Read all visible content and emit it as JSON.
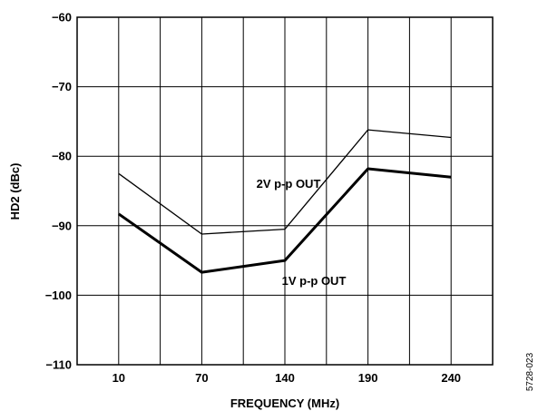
{
  "chart_data": {
    "type": "line",
    "xlabel": "FREQUENCY (MHz)",
    "ylabel": "HD2 (dBc)",
    "categories": [
      "10",
      "70",
      "140",
      "190",
      "240"
    ],
    "yticks": [
      "−60",
      "−70",
      "−80",
      "−90",
      "−100",
      "−110"
    ],
    "ylim": [
      -110,
      -60
    ],
    "grid": true,
    "series": [
      {
        "name": "2V p-p OUT",
        "values": [
          -82.5,
          -91.2,
          -90.5,
          -76.2,
          -77.3
        ],
        "line_weight": "thin"
      },
      {
        "name": "1V p-p OUT",
        "values": [
          -88.3,
          -96.7,
          -95.0,
          -81.8,
          -83.0
        ],
        "line_weight": "thick"
      }
    ],
    "figure_id": "5728-023"
  }
}
